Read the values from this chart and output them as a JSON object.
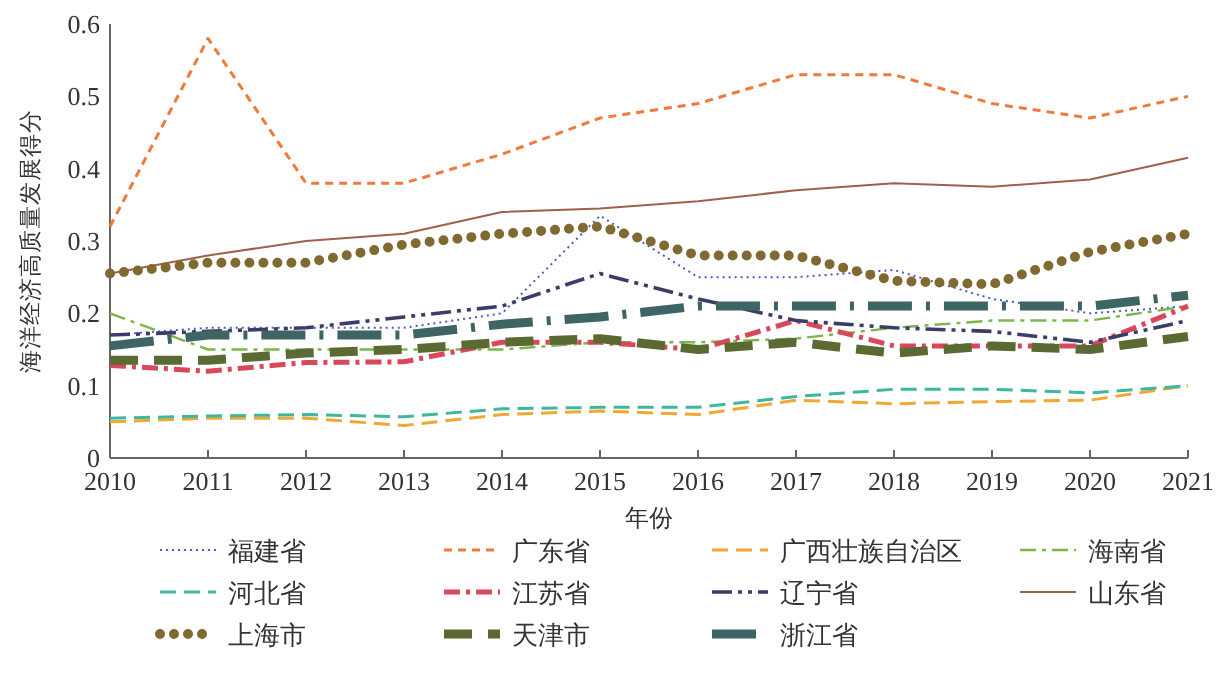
{
  "chart_data": {
    "type": "line",
    "xlabel": "年份",
    "ylabel": "海洋经济高质量发展得分",
    "x": [
      2010,
      2011,
      2012,
      2013,
      2014,
      2015,
      2016,
      2017,
      2018,
      2019,
      2020,
      2021
    ],
    "xlim": [
      2010,
      2021
    ],
    "xticks": [
      2010,
      2011,
      2012,
      2013,
      2014,
      2015,
      2016,
      2017,
      2018,
      2019,
      2020,
      2021
    ],
    "ylim": [
      0,
      0.6
    ],
    "yticks": [
      0,
      0.1,
      0.2,
      0.3,
      0.4,
      0.5,
      0.6
    ],
    "grid": false,
    "legend": "bottom",
    "marker": "none",
    "series": [
      {
        "name": "福建省",
        "color": "#4a5bc4",
        "line_style": "dotted",
        "values": [
          0.17,
          0.18,
          0.18,
          0.18,
          0.2,
          0.335,
          0.25,
          0.25,
          0.26,
          0.22,
          0.2,
          0.21
        ]
      },
      {
        "name": "广东省",
        "color": "#f07a3a",
        "line_style": "dashed",
        "values": [
          0.32,
          0.58,
          0.38,
          0.38,
          0.42,
          0.47,
          0.49,
          0.53,
          0.53,
          0.49,
          0.47,
          0.5
        ]
      },
      {
        "name": "广西壮族自治区",
        "color": "#f0a830",
        "line_style": "dashed",
        "values": [
          0.05,
          0.055,
          0.055,
          0.045,
          0.06,
          0.065,
          0.06,
          0.08,
          0.075,
          0.078,
          0.08,
          0.1
        ]
      },
      {
        "name": "海南省",
        "color": "#7ab648",
        "line_style": "dashed",
        "values": [
          0.2,
          0.15,
          0.15,
          0.15,
          0.15,
          0.16,
          0.16,
          0.165,
          0.18,
          0.19,
          0.19,
          0.21
        ]
      },
      {
        "name": "河北省",
        "color": "#3cb8a0",
        "line_style": "dashed",
        "values": [
          0.055,
          0.058,
          0.06,
          0.057,
          0.068,
          0.07,
          0.07,
          0.085,
          0.095,
          0.095,
          0.09,
          0.1
        ]
      },
      {
        "name": "江苏省",
        "color": "#d9475a",
        "line_style": "dashed",
        "values": [
          0.128,
          0.12,
          0.132,
          0.133,
          0.16,
          0.16,
          0.15,
          0.19,
          0.155,
          0.155,
          0.155,
          0.21
        ]
      },
      {
        "name": "辽宁省",
        "color": "#3c3c6a",
        "line_style": "dashed",
        "values": [
          0.17,
          0.175,
          0.18,
          0.195,
          0.21,
          0.255,
          0.22,
          0.19,
          0.18,
          0.175,
          0.16,
          0.19
        ]
      },
      {
        "name": "山东省",
        "color": "#a0604a",
        "line_style": "solid",
        "values": [
          0.255,
          0.28,
          0.3,
          0.31,
          0.34,
          0.345,
          0.355,
          0.37,
          0.38,
          0.375,
          0.385,
          0.415
        ]
      },
      {
        "name": "上海市",
        "color": "#806a32",
        "line_style": "dotted",
        "values": [
          0.255,
          0.27,
          0.27,
          0.295,
          0.31,
          0.32,
          0.28,
          0.28,
          0.245,
          0.24,
          0.285,
          0.31
        ]
      },
      {
        "name": "天津市",
        "color": "#5a6a32",
        "line_style": "dashed",
        "values": [
          0.135,
          0.135,
          0.145,
          0.15,
          0.16,
          0.165,
          0.15,
          0.16,
          0.145,
          0.155,
          0.15,
          0.168
        ]
      },
      {
        "name": "浙江省",
        "color": "#3e6464",
        "line_style": "dashed",
        "values": [
          0.155,
          0.17,
          0.17,
          0.17,
          0.185,
          0.195,
          0.21,
          0.21,
          0.21,
          0.21,
          0.21,
          0.225
        ]
      }
    ]
  }
}
